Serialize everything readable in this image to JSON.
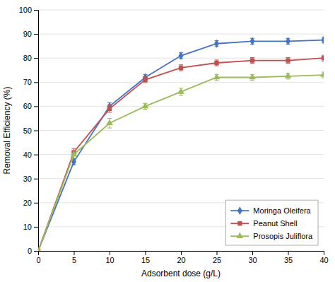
{
  "chart_data": {
    "type": "line",
    "xlabel": "Adsorbent dose (g/L)",
    "ylabel": "Removal Efficiency (%)",
    "x": [
      0,
      5,
      10,
      15,
      20,
      25,
      30,
      35,
      40
    ],
    "series": [
      {
        "name": "Moringa Oleifera",
        "color": "#4472C4",
        "marker": "diamond",
        "values": [
          0,
          37,
          60,
          72,
          81,
          86,
          87,
          87,
          87.5
        ],
        "errors": [
          0,
          1.2,
          1.5,
          1.2,
          1.2,
          1.2,
          1.2,
          1.2,
          1.2
        ]
      },
      {
        "name": "Peanut Shell",
        "color": "#C0504D",
        "marker": "square",
        "values": [
          0,
          41,
          59,
          71,
          76,
          78,
          79,
          79,
          80
        ],
        "errors": [
          0,
          1.5,
          1.5,
          1.2,
          1.2,
          1.2,
          1.2,
          1.2,
          1.2
        ]
      },
      {
        "name": "Prosopis Juliflora",
        "color": "#9BBB59",
        "marker": "triangle",
        "values": [
          0,
          40,
          53,
          60,
          66,
          72,
          72,
          72.5,
          73
        ],
        "errors": [
          0,
          1.5,
          2.0,
          1.2,
          1.5,
          1.2,
          1.2,
          1.2,
          1.2
        ]
      }
    ],
    "xlim": [
      0,
      40
    ],
    "ylim": [
      0,
      100
    ],
    "xticks": [
      0,
      5,
      10,
      15,
      20,
      25,
      30,
      35,
      40
    ],
    "yticks": [
      0,
      10,
      20,
      30,
      40,
      50,
      60,
      70,
      80,
      90,
      100
    ],
    "grid": "y",
    "legend": "lower right"
  }
}
